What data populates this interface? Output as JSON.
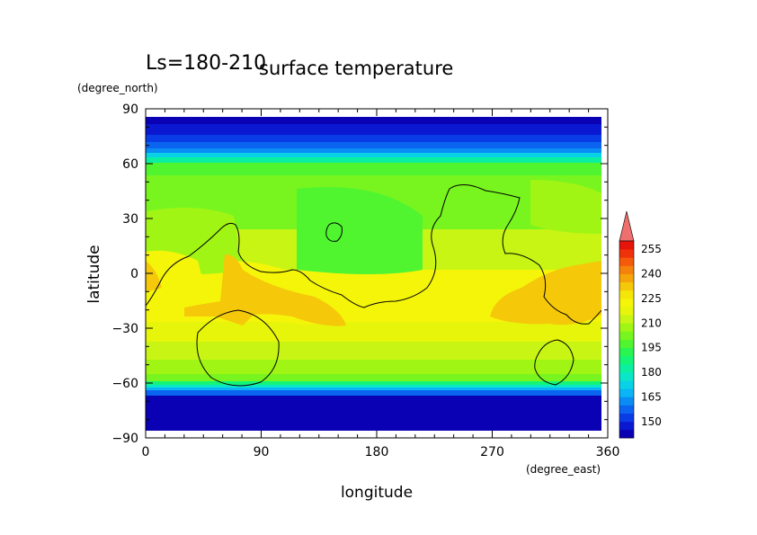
{
  "chart_data": {
    "type": "heatmap",
    "title": "surface temperature",
    "subtitle": "Ls=180-210",
    "xlabel": "longitude",
    "ylabel": "latitude",
    "xunit": "(degree_east)",
    "yunit": "(degree_north)",
    "xlim": [
      0,
      360
    ],
    "ylim": [
      -90,
      90
    ],
    "xticks": [
      "0",
      "90",
      "180",
      "270",
      "360"
    ],
    "yticks": [
      "90",
      "60",
      "30",
      "0",
      "−30",
      "−60",
      "−90"
    ],
    "colorbar": {
      "labels": [
        "150",
        "165",
        "180",
        "195",
        "210",
        "225",
        "240",
        "255"
      ],
      "levels": [
        140,
        145,
        150,
        155,
        160,
        165,
        170,
        175,
        180,
        185,
        190,
        195,
        200,
        205,
        210,
        215,
        220,
        225,
        230,
        235,
        240,
        245,
        250,
        255,
        260
      ],
      "colors": [
        "#0a00b4",
        "#0a18d2",
        "#0a3ce6",
        "#0a64f0",
        "#0a8cf5",
        "#0ab4f5",
        "#0ad2e6",
        "#0ae6c8",
        "#0af0a0",
        "#14f578",
        "#28f550",
        "#50f530",
        "#78f51e",
        "#a0f514",
        "#c8f514",
        "#e6f50a",
        "#f5f50a",
        "#f5e60a",
        "#f5c80a",
        "#f5a50a",
        "#f5820a",
        "#f55a0a",
        "#f0320a",
        "#e6140a"
      ],
      "extend_top_color": "#ef6e6e"
    },
    "grid": false,
    "legend": "right colorbar"
  }
}
